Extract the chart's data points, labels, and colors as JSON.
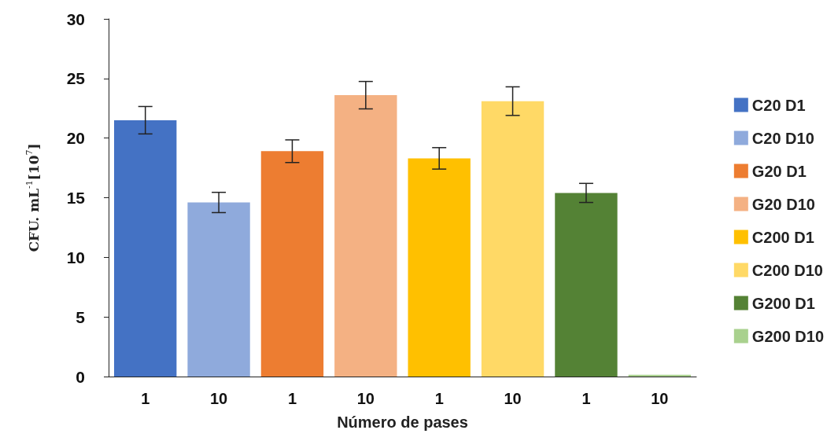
{
  "chart_data": {
    "type": "bar",
    "xlabel": "Número de pases",
    "ylabel": "CFU. mL$^{-1}$[10$^{7}$]",
    "categories": [
      "1",
      "10",
      "1",
      "10",
      "1",
      "10",
      "1",
      "10"
    ],
    "series": [
      {
        "name": "C20 D1",
        "color": "#4472c4",
        "values": [
          21.5,
          null,
          null,
          null,
          null,
          null,
          null,
          null
        ],
        "errors": [
          1.15,
          null,
          null,
          null,
          null,
          null,
          null,
          null
        ]
      },
      {
        "name": "C20 D10",
        "color": "#8faadc",
        "values": [
          null,
          14.6,
          null,
          null,
          null,
          null,
          null,
          null
        ],
        "errors": [
          null,
          0.85,
          null,
          null,
          null,
          null,
          null,
          null
        ]
      },
      {
        "name": "G20 D1",
        "color": "#ed7d31",
        "values": [
          null,
          null,
          18.9,
          null,
          null,
          null,
          null,
          null
        ],
        "errors": [
          null,
          null,
          0.95,
          null,
          null,
          null,
          null,
          null
        ]
      },
      {
        "name": "G20 D10",
        "color": "#f4b183",
        "values": [
          null,
          null,
          null,
          23.6,
          null,
          null,
          null,
          null
        ],
        "errors": [
          null,
          null,
          null,
          1.15,
          null,
          null,
          null,
          null
        ]
      },
      {
        "name": "C200 D1",
        "color": "#ffc000",
        "values": [
          null,
          null,
          null,
          null,
          18.3,
          null,
          null,
          null
        ],
        "errors": [
          null,
          null,
          null,
          null,
          0.9,
          null,
          null,
          null
        ]
      },
      {
        "name": "C200 D10",
        "color": "#ffd966",
        "values": [
          null,
          null,
          null,
          null,
          null,
          23.1,
          null,
          null
        ],
        "errors": [
          null,
          null,
          null,
          null,
          null,
          1.2,
          null,
          null
        ]
      },
      {
        "name": "G200 D1",
        "color": "#548235",
        "values": [
          null,
          null,
          null,
          null,
          null,
          null,
          15.4,
          null
        ],
        "errors": [
          null,
          null,
          null,
          null,
          null,
          null,
          0.8,
          null
        ]
      },
      {
        "name": "G200 D10",
        "color": "#a9d18e",
        "values": [
          null,
          null,
          null,
          null,
          null,
          null,
          null,
          0.15
        ],
        "errors": [
          null,
          null,
          null,
          null,
          null,
          null,
          null,
          null
        ]
      }
    ],
    "ylim": [
      0,
      30
    ],
    "yticks": [
      0,
      5,
      10,
      15,
      20,
      25,
      30
    ],
    "grid": false,
    "legend": "right"
  }
}
